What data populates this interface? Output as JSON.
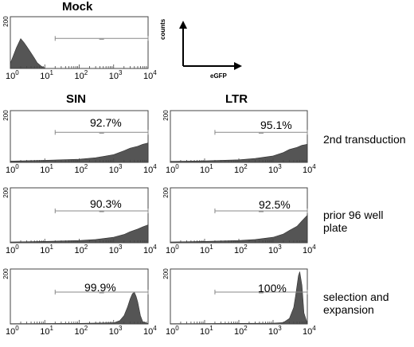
{
  "chart_data": [
    {
      "type": "area",
      "title": "Mock",
      "xscale": "log",
      "xlim": [
        1,
        10000
      ],
      "ylim": [
        0,
        200
      ],
      "yticks": [
        "200"
      ],
      "xticks": [
        "10^0",
        "10^1",
        "10^2",
        "10^3",
        "10^4"
      ],
      "gate": [
        20,
        10000
      ],
      "gate_percent": "",
      "x": [
        1,
        1.5,
        2,
        2.5,
        3,
        4,
        5,
        6,
        8,
        10
      ],
      "y": [
        20,
        80,
        115,
        100,
        85,
        60,
        40,
        22,
        8,
        2
      ]
    },
    {
      "type": "area",
      "title": "SIN",
      "row_label": "",
      "xscale": "log",
      "xlim": [
        1,
        10000
      ],
      "ylim": [
        0,
        200
      ],
      "yticks": [
        "200"
      ],
      "xticks": [
        "10^0",
        "10^1",
        "10^2",
        "10^3",
        "10^4"
      ],
      "gate": [
        20,
        10000
      ],
      "gate_percent": "92.7%",
      "x": [
        1,
        10,
        100,
        300,
        1000,
        2000,
        3000,
        5000,
        7000,
        10000
      ],
      "y": [
        5,
        8,
        12,
        18,
        30,
        45,
        55,
        62,
        70,
        75
      ]
    },
    {
      "type": "area",
      "title": "LTR",
      "row_label": "2nd transduction",
      "xscale": "log",
      "xlim": [
        1,
        10000
      ],
      "ylim": [
        0,
        200
      ],
      "yticks": [
        "200"
      ],
      "xticks": [
        "10^0",
        "10^1",
        "10^2",
        "10^3",
        "10^4"
      ],
      "gate": [
        20,
        10000
      ],
      "gate_percent": "95.1%",
      "x": [
        1,
        10,
        100,
        300,
        1000,
        2000,
        3000,
        5000,
        7000,
        10000
      ],
      "y": [
        4,
        6,
        10,
        15,
        25,
        38,
        50,
        58,
        66,
        70
      ]
    },
    {
      "type": "area",
      "row_label": "",
      "xscale": "log",
      "xlim": [
        1,
        10000
      ],
      "ylim": [
        0,
        200
      ],
      "yticks": [
        "200"
      ],
      "xticks": [
        "10^0",
        "10^1",
        "10^2",
        "10^3",
        "10^4"
      ],
      "gate": [
        20,
        10000
      ],
      "gate_percent": "90.3%",
      "x": [
        1,
        10,
        100,
        300,
        1000,
        2000,
        3000,
        5000,
        7000,
        10000
      ],
      "y": [
        3,
        5,
        8,
        12,
        20,
        30,
        40,
        50,
        58,
        65
      ]
    },
    {
      "type": "area",
      "row_label": "prior 96 well plate",
      "xscale": "log",
      "xlim": [
        1,
        10000
      ],
      "ylim": [
        0,
        200
      ],
      "yticks": [
        "200"
      ],
      "xticks": [
        "10^0",
        "10^1",
        "10^2",
        "10^3",
        "10^4"
      ],
      "gate": [
        20,
        10000
      ],
      "gate_percent": "92.5%",
      "x": [
        1,
        10,
        100,
        300,
        1000,
        2000,
        3000,
        5000,
        7000,
        10000
      ],
      "y": [
        3,
        5,
        8,
        12,
        20,
        32,
        45,
        60,
        80,
        100
      ]
    },
    {
      "type": "area",
      "row_label": "",
      "xscale": "log",
      "xlim": [
        1,
        10000
      ],
      "ylim": [
        0,
        200
      ],
      "yticks": [
        "200"
      ],
      "xticks": [
        "10^0",
        "10^1",
        "10^2",
        "10^3",
        "10^4"
      ],
      "gate": [
        20,
        10000
      ],
      "gate_percent": "99.9%",
      "x": [
        1,
        100,
        1000,
        1500,
        2000,
        2500,
        3000,
        3500,
        4000,
        4500,
        5000,
        6000,
        7000,
        10000
      ],
      "y": [
        1,
        2,
        4,
        12,
        30,
        60,
        90,
        110,
        115,
        100,
        80,
        30,
        8,
        1
      ]
    },
    {
      "type": "area",
      "row_label": "selection and expansion",
      "xscale": "log",
      "xlim": [
        1,
        10000
      ],
      "ylim": [
        0,
        200
      ],
      "yticks": [
        "200"
      ],
      "xticks": [
        "10^0",
        "10^1",
        "10^2",
        "10^3",
        "10^4"
      ],
      "gate": [
        20,
        10000
      ],
      "gate_percent": "100%",
      "x": [
        1,
        100,
        1000,
        2000,
        3000,
        4000,
        4500,
        5000,
        5500,
        6000,
        7000,
        8000,
        10000
      ],
      "y": [
        1,
        2,
        3,
        5,
        20,
        60,
        100,
        140,
        175,
        190,
        140,
        40,
        2
      ]
    }
  ],
  "legend_schematic": {
    "ylabel": "counts",
    "xlabel": "eGFP"
  },
  "row_label_lines": {
    "row2": [
      "prior 96 well",
      "plate"
    ],
    "row3": [
      "selection and",
      "expansion"
    ]
  }
}
